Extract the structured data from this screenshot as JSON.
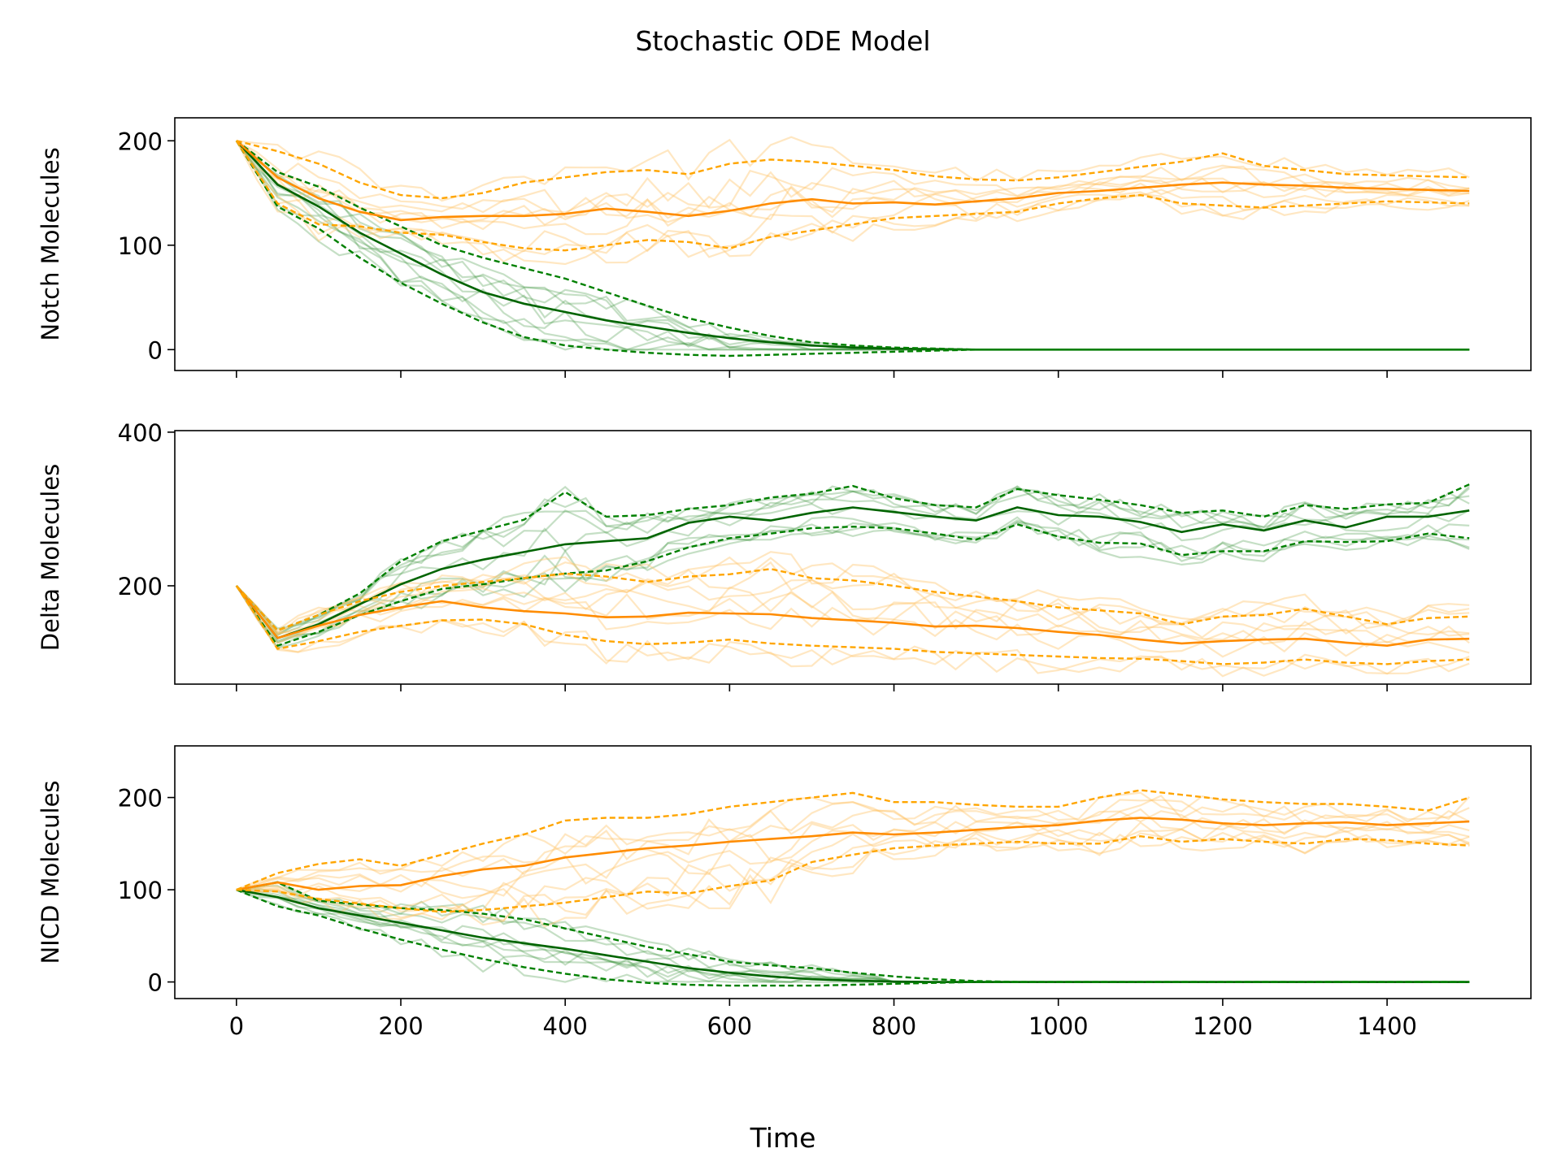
{
  "figure": {
    "title": "Stochastic ODE Model",
    "xlabel": "Time",
    "x_ticks": [
      0,
      200,
      400,
      600,
      800,
      1000,
      1200,
      1400
    ],
    "x_tick_labels": [
      "0",
      "200",
      "400",
      "600",
      "800",
      "1000",
      "1200",
      "1400"
    ],
    "colors": {
      "green_mean": "#006400",
      "green_band": "#008000",
      "green_trace": "#2e8b2e",
      "orange_mean": "#ff8c00",
      "orange_band": "#ffa500",
      "orange_trace": "#ffbf5f"
    }
  },
  "chart_data": [
    {
      "type": "line",
      "title": "",
      "ylabel": "Notch Molecules",
      "xlabel": "Time",
      "xlim": [
        -75,
        1575
      ],
      "ylim": [
        -20,
        222
      ],
      "y_ticks": [
        0,
        100,
        200
      ],
      "y_tick_labels": [
        "0",
        "100",
        "200"
      ],
      "x": [
        0,
        50,
        100,
        150,
        200,
        250,
        300,
        350,
        400,
        450,
        500,
        550,
        600,
        650,
        700,
        750,
        800,
        850,
        900,
        950,
        1000,
        1050,
        1100,
        1150,
        1200,
        1250,
        1300,
        1350,
        1400,
        1450,
        1500
      ],
      "series": [
        {
          "name": "green mean",
          "values": [
            200,
            158,
            137,
            112,
            92,
            72,
            55,
            44,
            36,
            28,
            22,
            16,
            11,
            7,
            4,
            2,
            1,
            0.5,
            0,
            0,
            0,
            0,
            0,
            0,
            0,
            0,
            0,
            0,
            0,
            0,
            0
          ]
        },
        {
          "name": "green upper",
          "values": [
            200,
            170,
            156,
            136,
            118,
            100,
            88,
            78,
            68,
            55,
            42,
            30,
            21,
            13,
            7,
            4,
            2,
            1,
            0,
            0,
            0,
            0,
            0,
            0,
            0,
            0,
            0,
            0,
            0,
            0,
            0
          ]
        },
        {
          "name": "green lower",
          "values": [
            200,
            137,
            116,
            88,
            64,
            44,
            26,
            12,
            4,
            0,
            -3,
            -5,
            -6,
            -5,
            -4,
            -3,
            -2,
            -1,
            0,
            0,
            0,
            0,
            0,
            0,
            0,
            0,
            0,
            0,
            0,
            0,
            0
          ]
        },
        {
          "name": "orange mean",
          "values": [
            200,
            165,
            145,
            132,
            124,
            127,
            128,
            128,
            130,
            135,
            132,
            128,
            133,
            140,
            144,
            140,
            141,
            139,
            142,
            145,
            150,
            152,
            155,
            158,
            160,
            158,
            157,
            155,
            154,
            153,
            152
          ]
        },
        {
          "name": "orange upper",
          "values": [
            200,
            190,
            178,
            160,
            148,
            145,
            150,
            160,
            165,
            170,
            172,
            168,
            178,
            182,
            180,
            176,
            172,
            166,
            163,
            162,
            165,
            170,
            175,
            180,
            188,
            176,
            172,
            168,
            167,
            166,
            165
          ]
        },
        {
          "name": "orange lower",
          "values": [
            200,
            140,
            120,
            118,
            112,
            110,
            103,
            97,
            95,
            100,
            105,
            103,
            97,
            108,
            114,
            120,
            126,
            128,
            130,
            132,
            140,
            145,
            148,
            140,
            138,
            136,
            138,
            140,
            142,
            141,
            140
          ]
        }
      ]
    },
    {
      "type": "line",
      "title": "",
      "ylabel": "Delta Molecules",
      "xlabel": "Time",
      "xlim": [
        -75,
        1575
      ],
      "ylim": [
        72,
        402
      ],
      "y_ticks": [
        200,
        400
      ],
      "y_tick_labels": [
        "200",
        "400"
      ],
      "x": [
        0,
        50,
        100,
        150,
        200,
        250,
        300,
        350,
        400,
        450,
        500,
        550,
        600,
        650,
        700,
        750,
        800,
        850,
        900,
        950,
        1000,
        1050,
        1100,
        1150,
        1200,
        1250,
        1300,
        1350,
        1400,
        1450,
        1500
      ],
      "series": [
        {
          "name": "green mean",
          "values": [
            200,
            132,
            150,
            176,
            202,
            222,
            234,
            244,
            254,
            258,
            262,
            282,
            290,
            285,
            295,
            302,
            296,
            290,
            285,
            302,
            292,
            290,
            283,
            270,
            280,
            272,
            285,
            276,
            290,
            290,
            298
          ]
        },
        {
          "name": "green upper",
          "values": [
            200,
            142,
            162,
            190,
            232,
            258,
            272,
            286,
            322,
            290,
            292,
            300,
            305,
            315,
            320,
            330,
            314,
            305,
            302,
            326,
            318,
            312,
            305,
            295,
            298,
            290,
            305,
            300,
            306,
            308,
            332
          ]
        },
        {
          "name": "green lower",
          "values": [
            200,
            122,
            140,
            162,
            180,
            196,
            202,
            210,
            216,
            220,
            232,
            250,
            262,
            268,
            275,
            277,
            275,
            268,
            260,
            280,
            264,
            256,
            255,
            240,
            245,
            245,
            258,
            257,
            258,
            268,
            262
          ]
        },
        {
          "name": "orange mean",
          "values": [
            200,
            132,
            148,
            162,
            172,
            180,
            172,
            167,
            164,
            159,
            160,
            165,
            164,
            163,
            158,
            155,
            152,
            147,
            148,
            145,
            140,
            136,
            130,
            125,
            128,
            130,
            131,
            126,
            122,
            130,
            131
          ]
        },
        {
          "name": "orange upper",
          "values": [
            200,
            142,
            162,
            180,
            192,
            200,
            205,
            210,
            216,
            212,
            205,
            212,
            215,
            222,
            210,
            207,
            200,
            192,
            186,
            180,
            172,
            168,
            164,
            150,
            160,
            162,
            170,
            160,
            150,
            158,
            160
          ]
        },
        {
          "name": "orange lower",
          "values": [
            200,
            118,
            128,
            140,
            148,
            155,
            156,
            150,
            136,
            128,
            124,
            126,
            130,
            125,
            122,
            120,
            118,
            114,
            112,
            110,
            108,
            106,
            105,
            102,
            98,
            100,
            104,
            100,
            98,
            102,
            104
          ]
        }
      ]
    },
    {
      "type": "line",
      "title": "",
      "ylabel": "NICD Molecules",
      "xlabel": "Time",
      "xlim": [
        -75,
        1575
      ],
      "ylim": [
        -18,
        256
      ],
      "y_ticks": [
        0,
        100,
        200
      ],
      "y_tick_labels": [
        "0",
        "100",
        "200"
      ],
      "x": [
        0,
        50,
        100,
        150,
        200,
        250,
        300,
        350,
        400,
        450,
        500,
        550,
        600,
        650,
        700,
        750,
        800,
        850,
        900,
        950,
        1000,
        1050,
        1100,
        1150,
        1200,
        1250,
        1300,
        1350,
        1400,
        1450,
        1500
      ],
      "series": [
        {
          "name": "green mean",
          "values": [
            100,
            92,
            80,
            72,
            64,
            56,
            48,
            42,
            36,
            29,
            22,
            15,
            10,
            6,
            3,
            1.5,
            0.5,
            0,
            0,
            0,
            0,
            0,
            0,
            0,
            0,
            0,
            0,
            0,
            0,
            0,
            0
          ]
        },
        {
          "name": "green upper",
          "values": [
            100,
            108,
            88,
            84,
            80,
            78,
            74,
            68,
            58,
            48,
            38,
            30,
            22,
            18,
            15,
            10,
            6,
            3,
            1,
            0,
            0,
            0,
            0,
            0,
            0,
            0,
            0,
            0,
            0,
            0,
            0
          ]
        },
        {
          "name": "green lower",
          "values": [
            100,
            82,
            72,
            58,
            46,
            35,
            25,
            16,
            9,
            3,
            -1,
            -3,
            -4,
            -4,
            -4,
            -3,
            -2,
            -1,
            0,
            0,
            0,
            0,
            0,
            0,
            0,
            0,
            0,
            0,
            0,
            0,
            0
          ]
        },
        {
          "name": "orange mean",
          "values": [
            100,
            108,
            100,
            104,
            105,
            115,
            122,
            126,
            135,
            140,
            145,
            148,
            152,
            155,
            158,
            162,
            160,
            162,
            165,
            168,
            170,
            175,
            178,
            176,
            172,
            170,
            172,
            173,
            170,
            172,
            174
          ]
        },
        {
          "name": "orange upper",
          "values": [
            100,
            118,
            128,
            133,
            126,
            138,
            150,
            160,
            175,
            178,
            178,
            182,
            190,
            195,
            200,
            205,
            195,
            195,
            192,
            190,
            190,
            200,
            208,
            203,
            198,
            195,
            193,
            193,
            190,
            186,
            200
          ]
        },
        {
          "name": "orange lower",
          "values": [
            100,
            98,
            90,
            85,
            80,
            76,
            78,
            82,
            86,
            92,
            98,
            96,
            104,
            110,
            130,
            138,
            145,
            148,
            150,
            152,
            150,
            150,
            158,
            152,
            155,
            152,
            150,
            155,
            154,
            150,
            148
          ]
        }
      ]
    }
  ]
}
